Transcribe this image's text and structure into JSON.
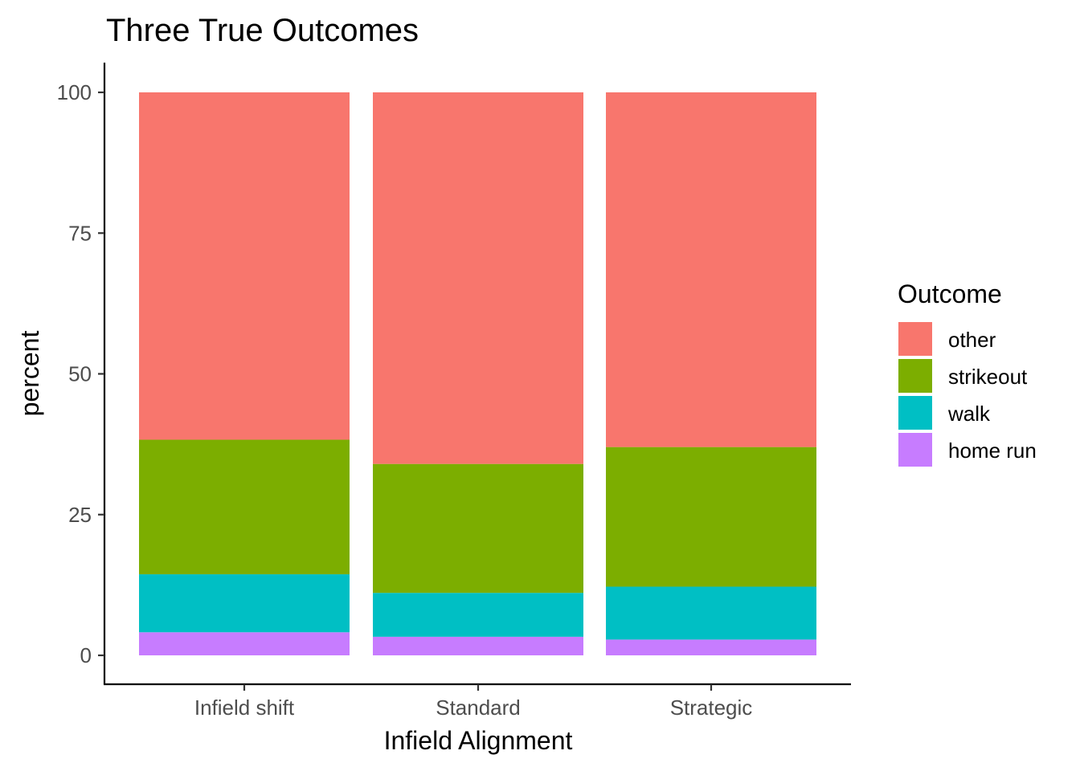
{
  "chart_data": {
    "type": "bar",
    "stacked": true,
    "title": "Three True Outcomes",
    "xlabel": "Infield Alignment",
    "ylabel": "percent",
    "categories": [
      "Infield shift",
      "Standard",
      "Strategic"
    ],
    "series": [
      {
        "name": "home run",
        "color": "#C77CFF",
        "values": [
          4.1,
          3.3,
          2.8
        ]
      },
      {
        "name": "walk",
        "color": "#00BFC4",
        "values": [
          10.3,
          7.8,
          9.4
        ]
      },
      {
        "name": "strikeout",
        "color": "#7CAE00",
        "values": [
          23.9,
          22.9,
          24.8
        ]
      },
      {
        "name": "other",
        "color": "#F8766D",
        "values": [
          61.7,
          66.0,
          63.0
        ]
      }
    ],
    "ylim": [
      0,
      100
    ],
    "yticks": [
      "0",
      "25",
      "50",
      "75",
      "100"
    ],
    "grid": false,
    "legend": {
      "title": "Outcome",
      "position": "right",
      "order": [
        "other",
        "strikeout",
        "walk",
        "home run"
      ]
    }
  }
}
